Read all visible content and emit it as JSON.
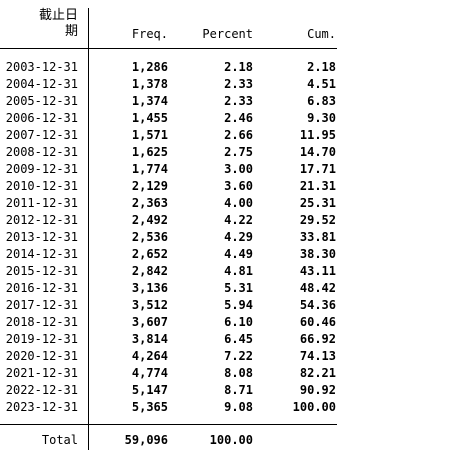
{
  "header": {
    "var_label_line1": "截止日",
    "var_label_line2": "期",
    "freq": "Freq.",
    "percent": "Percent",
    "cum": "Cum."
  },
  "rows": [
    {
      "label": "2003-12-31",
      "freq": "1,286",
      "percent": "2.18",
      "cum": "2.18"
    },
    {
      "label": "2004-12-31",
      "freq": "1,378",
      "percent": "2.33",
      "cum": "4.51"
    },
    {
      "label": "2005-12-31",
      "freq": "1,374",
      "percent": "2.33",
      "cum": "6.83"
    },
    {
      "label": "2006-12-31",
      "freq": "1,455",
      "percent": "2.46",
      "cum": "9.30"
    },
    {
      "label": "2007-12-31",
      "freq": "1,571",
      "percent": "2.66",
      "cum": "11.95"
    },
    {
      "label": "2008-12-31",
      "freq": "1,625",
      "percent": "2.75",
      "cum": "14.70"
    },
    {
      "label": "2009-12-31",
      "freq": "1,774",
      "percent": "3.00",
      "cum": "17.71"
    },
    {
      "label": "2010-12-31",
      "freq": "2,129",
      "percent": "3.60",
      "cum": "21.31"
    },
    {
      "label": "2011-12-31",
      "freq": "2,363",
      "percent": "4.00",
      "cum": "25.31"
    },
    {
      "label": "2012-12-31",
      "freq": "2,492",
      "percent": "4.22",
      "cum": "29.52"
    },
    {
      "label": "2013-12-31",
      "freq": "2,536",
      "percent": "4.29",
      "cum": "33.81"
    },
    {
      "label": "2014-12-31",
      "freq": "2,652",
      "percent": "4.49",
      "cum": "38.30"
    },
    {
      "label": "2015-12-31",
      "freq": "2,842",
      "percent": "4.81",
      "cum": "43.11"
    },
    {
      "label": "2016-12-31",
      "freq": "3,136",
      "percent": "5.31",
      "cum": "48.42"
    },
    {
      "label": "2017-12-31",
      "freq": "3,512",
      "percent": "5.94",
      "cum": "54.36"
    },
    {
      "label": "2018-12-31",
      "freq": "3,607",
      "percent": "6.10",
      "cum": "60.46"
    },
    {
      "label": "2019-12-31",
      "freq": "3,814",
      "percent": "6.45",
      "cum": "66.92"
    },
    {
      "label": "2020-12-31",
      "freq": "4,264",
      "percent": "7.22",
      "cum": "74.13"
    },
    {
      "label": "2021-12-31",
      "freq": "4,774",
      "percent": "8.08",
      "cum": "82.21"
    },
    {
      "label": "2022-12-31",
      "freq": "5,147",
      "percent": "8.71",
      "cum": "90.92"
    },
    {
      "label": "2023-12-31",
      "freq": "5,365",
      "percent": "9.08",
      "cum": "100.00"
    }
  ],
  "total": {
    "label": "Total",
    "freq": "59,096",
    "percent": "100.00"
  }
}
